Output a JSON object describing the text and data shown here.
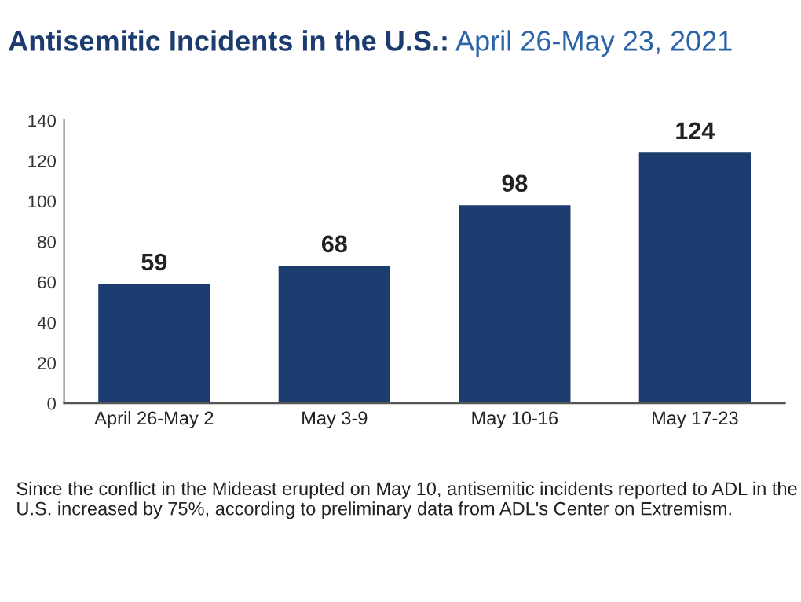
{
  "chart_data": {
    "type": "bar",
    "title": "Antisemitic Incidents in the U.S.:",
    "subtitle": "April 26-May 23, 2021",
    "categories": [
      "April 26-May 2",
      "May 3-9",
      "May 10-16",
      "May 17-23"
    ],
    "values": [
      59,
      68,
      98,
      124
    ],
    "color": "#1c3b6e",
    "ylim": [
      0,
      140
    ],
    "yticks": [
      0,
      20,
      40,
      60,
      80,
      100,
      120,
      140
    ],
    "grid": false,
    "data_labels": true,
    "annotations": [
      "Since the conflict in the Mideast erupted on May 10, antisemitic incidents reported to ADL in the U.S. increased by 75%, according to preliminary data from ADL's Center on Extremism."
    ]
  }
}
